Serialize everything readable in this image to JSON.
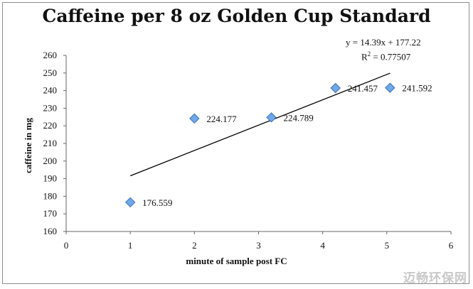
{
  "chart_data": {
    "type": "scatter",
    "title": "Caffeine per 8 oz Golden Cup Standard",
    "xlabel": "minute of sample post FC",
    "ylabel": "caffeine in mg",
    "xlim": [
      0,
      6
    ],
    "ylim": [
      160,
      260
    ],
    "x_ticks": [
      "0",
      "1",
      "2",
      "3",
      "4",
      "5",
      "6"
    ],
    "y_ticks": [
      "160",
      "170",
      "180",
      "190",
      "200",
      "210",
      "220",
      "230",
      "240",
      "250",
      "260"
    ],
    "series": [
      {
        "x": [
          1,
          2,
          3.2,
          4.2,
          5.05
        ],
        "values": [
          176.559,
          224.177,
          224.789,
          241.457,
          241.592
        ],
        "labels": [
          "176.559",
          "224.177",
          "224.789",
          "241.457",
          "241.592"
        ]
      }
    ],
    "trendline": {
      "slope": 14.39,
      "intercept": 177.22,
      "x_range": [
        1,
        5.05
      ],
      "equation": "y = 14.39x + 177.22",
      "r2_prefix": "R",
      "r2_sup": "2",
      "r2_value": " = 0.77507"
    },
    "grid": false,
    "legend": "none",
    "marker_color": "#6fa8e8",
    "marker_edge": "#3a6fb5"
  },
  "watermark": "迈畅环保网"
}
